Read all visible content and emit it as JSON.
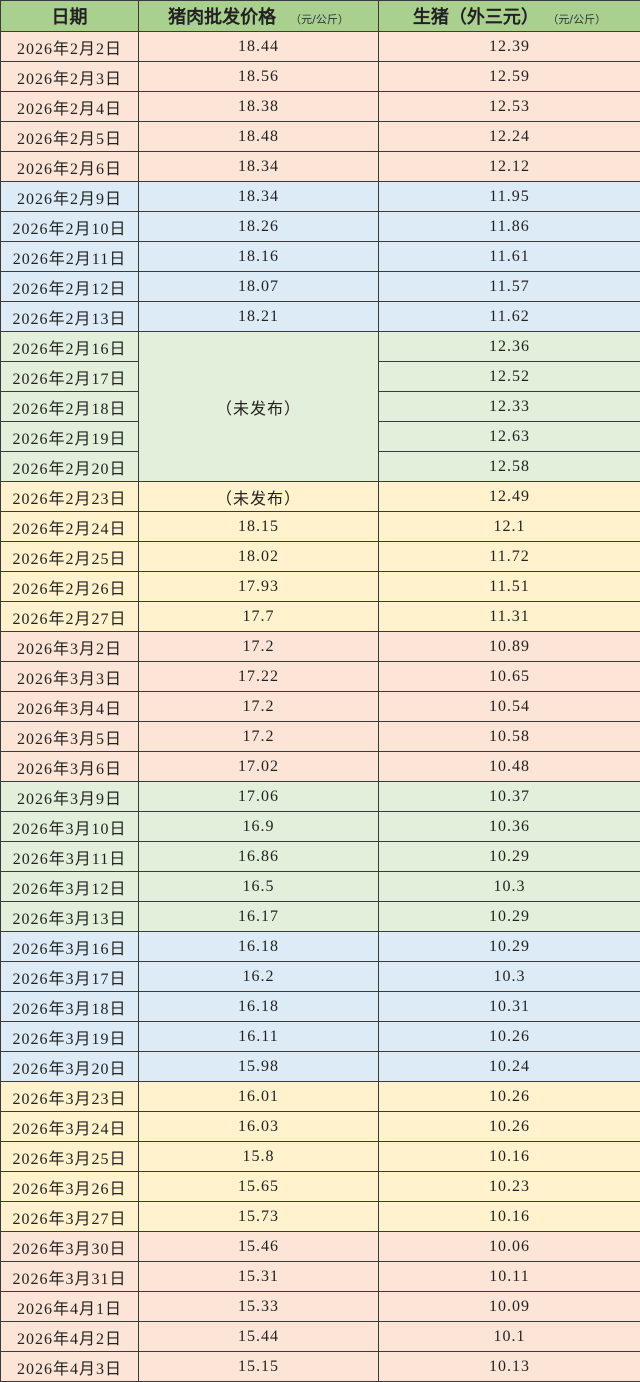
{
  "header": {
    "date": "日期",
    "pork": "猪肉批发价格",
    "pork_unit": "（元/公斤）",
    "hog": "生猪（外三元）",
    "hog_unit": "（元/公斤）"
  },
  "group_colors": [
    "#fce4d6",
    "#ddebf7",
    "#e2efda",
    "#fff2cc",
    "#fce4d6",
    "#e2efda",
    "#ddebf7",
    "#fff2cc",
    "#fce4d6"
  ],
  "header_color": "#a9d08e",
  "rows": [
    {
      "g": 0,
      "date": "2026年2月2日",
      "pork": "18.44",
      "hog": "12.39"
    },
    {
      "g": 0,
      "date": "2026年2月3日",
      "pork": "18.56",
      "hog": "12.59"
    },
    {
      "g": 0,
      "date": "2026年2月4日",
      "pork": "18.38",
      "hog": "12.53"
    },
    {
      "g": 0,
      "date": "2026年2月5日",
      "pork": "18.48",
      "hog": "12.24"
    },
    {
      "g": 0,
      "date": "2026年2月6日",
      "pork": "18.34",
      "hog": "12.12"
    },
    {
      "g": 1,
      "date": "2026年2月9日",
      "pork": "18.34",
      "hog": "11.95"
    },
    {
      "g": 1,
      "date": "2026年2月10日",
      "pork": "18.26",
      "hog": "11.86"
    },
    {
      "g": 1,
      "date": "2026年2月11日",
      "pork": "18.16",
      "hog": "11.61"
    },
    {
      "g": 1,
      "date": "2026年2月12日",
      "pork": "18.07",
      "hog": "11.57"
    },
    {
      "g": 1,
      "date": "2026年2月13日",
      "pork": "18.21",
      "hog": "11.62"
    },
    {
      "g": 2,
      "date": "2026年2月16日",
      "pork": "（未发布）",
      "hog": "12.36"
    },
    {
      "g": 2,
      "date": "2026年2月17日",
      "pork": null,
      "hog": "12.52"
    },
    {
      "g": 2,
      "date": "2026年2月18日",
      "pork": null,
      "hog": "12.33"
    },
    {
      "g": 2,
      "date": "2026年2月19日",
      "pork": null,
      "hog": "12.63"
    },
    {
      "g": 2,
      "date": "2026年2月20日",
      "pork": null,
      "hog": "12.58"
    },
    {
      "g": 3,
      "date": "2026年2月23日",
      "pork": "（未发布）",
      "hog": "12.49"
    },
    {
      "g": 3,
      "date": "2026年2月24日",
      "pork": "18.15",
      "hog": "12.1"
    },
    {
      "g": 3,
      "date": "2026年2月25日",
      "pork": "18.02",
      "hog": "11.72"
    },
    {
      "g": 3,
      "date": "2026年2月26日",
      "pork": "17.93",
      "hog": "11.51"
    },
    {
      "g": 3,
      "date": "2026年2月27日",
      "pork": "17.7",
      "hog": "11.31"
    },
    {
      "g": 4,
      "date": "2026年3月2日",
      "pork": "17.2",
      "hog": "10.89"
    },
    {
      "g": 4,
      "date": "2026年3月3日",
      "pork": "17.22",
      "hog": "10.65"
    },
    {
      "g": 4,
      "date": "2026年3月4日",
      "pork": "17.2",
      "hog": "10.54"
    },
    {
      "g": 4,
      "date": "2026年3月5日",
      "pork": "17.2",
      "hog": "10.58"
    },
    {
      "g": 4,
      "date": "2026年3月6日",
      "pork": "17.02",
      "hog": "10.48"
    },
    {
      "g": 5,
      "date": "2026年3月9日",
      "pork": "17.06",
      "hog": "10.37"
    },
    {
      "g": 5,
      "date": "2026年3月10日",
      "pork": "16.9",
      "hog": "10.36"
    },
    {
      "g": 5,
      "date": "2026年3月11日",
      "pork": "16.86",
      "hog": "10.29"
    },
    {
      "g": 5,
      "date": "2026年3月12日",
      "pork": "16.5",
      "hog": "10.3"
    },
    {
      "g": 5,
      "date": "2026年3月13日",
      "pork": "16.17",
      "hog": "10.29"
    },
    {
      "g": 6,
      "date": "2026年3月16日",
      "pork": "16.18",
      "hog": "10.29"
    },
    {
      "g": 6,
      "date": "2026年3月17日",
      "pork": "16.2",
      "hog": "10.3"
    },
    {
      "g": 6,
      "date": "2026年3月18日",
      "pork": "16.18",
      "hog": "10.31"
    },
    {
      "g": 6,
      "date": "2026年3月19日",
      "pork": "16.11",
      "hog": "10.26"
    },
    {
      "g": 6,
      "date": "2026年3月20日",
      "pork": "15.98",
      "hog": "10.24"
    },
    {
      "g": 7,
      "date": "2026年3月23日",
      "pork": "16.01",
      "hog": "10.26"
    },
    {
      "g": 7,
      "date": "2026年3月24日",
      "pork": "16.03",
      "hog": "10.26"
    },
    {
      "g": 7,
      "date": "2026年3月25日",
      "pork": "15.8",
      "hog": "10.16"
    },
    {
      "g": 7,
      "date": "2026年3月26日",
      "pork": "15.65",
      "hog": "10.23"
    },
    {
      "g": 7,
      "date": "2026年3月27日",
      "pork": "15.73",
      "hog": "10.16"
    },
    {
      "g": 8,
      "date": "2026年3月30日",
      "pork": "15.46",
      "hog": "10.06"
    },
    {
      "g": 8,
      "date": "2026年3月31日",
      "pork": "15.31",
      "hog": "10.11"
    },
    {
      "g": 8,
      "date": "2026年4月1日",
      "pork": "15.33",
      "hog": "10.09"
    },
    {
      "g": 8,
      "date": "2026年4月2日",
      "pork": "15.44",
      "hog": "10.1"
    },
    {
      "g": 8,
      "date": "2026年4月3日",
      "pork": "15.15",
      "hog": "10.13"
    }
  ]
}
